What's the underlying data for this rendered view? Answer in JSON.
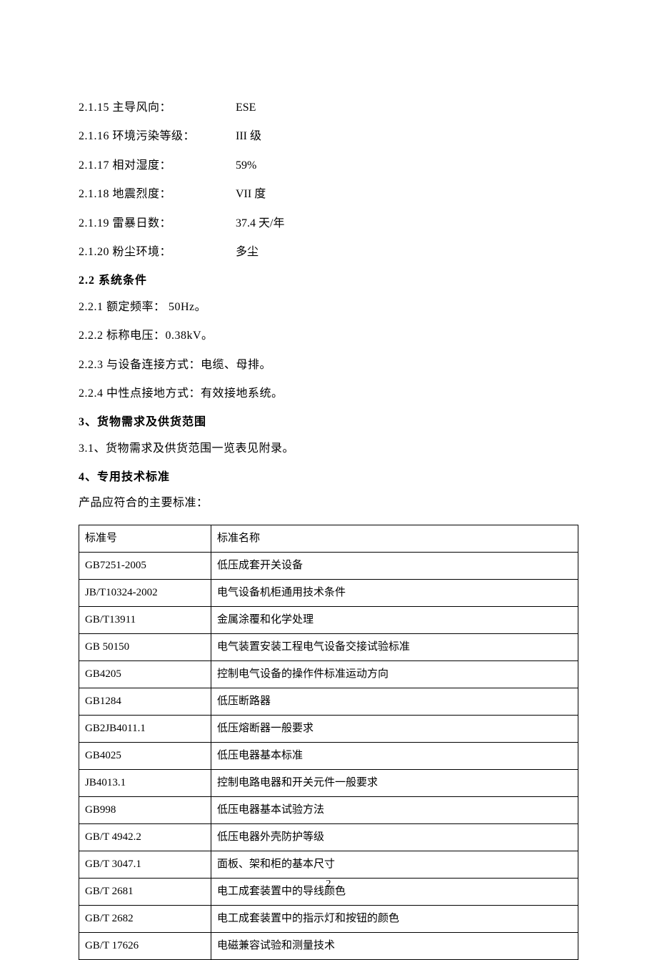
{
  "params": [
    {
      "label": "2.1.15 主导风向：",
      "value": "ESE"
    },
    {
      "label": "2.1.16 环境污染等级：",
      "value": "III 级"
    },
    {
      "label": "2.1.17 相对湿度：",
      "value": "59%"
    },
    {
      "label": "2.1.18 地震烈度：",
      "value": "VII 度"
    },
    {
      "label": "2.1.19 雷暴日数：",
      "value": "37.4 天/年"
    },
    {
      "label": "2.1.20 粉尘环境：",
      "value": "多尘"
    }
  ],
  "section22": {
    "heading": "2.2  系统条件",
    "lines": [
      "2.2.1  额定频率： 50Hz。",
      "2.2.2  标称电压：0.38kV。",
      "2.2.3  与设备连接方式：电缆、母排。",
      "2.2.4  中性点接地方式：有效接地系统。"
    ]
  },
  "section3": {
    "heading": "3、货物需求及供货范围",
    "line": "3.1、货物需求及供货范围一览表见附录。"
  },
  "section4": {
    "heading": "4、专用技术标准",
    "intro": "产品应符合的主要标准："
  },
  "table": {
    "header": {
      "code": "标准号",
      "name": "标准名称"
    },
    "rows": [
      {
        "code": "GB7251-2005",
        "name": "低压成套开关设备"
      },
      {
        "code": "JB/T10324-2002",
        "name": "电气设备机柜通用技术条件"
      },
      {
        "code": "GB/T13911",
        "name": "金属涂覆和化学处理"
      },
      {
        "code": "GB 50150",
        "name": "电气装置安装工程电气设备交接试验标准"
      },
      {
        "code": "GB4205",
        "name": "控制电气设备的操作件标准运动方向"
      },
      {
        "code": "GB1284",
        "name": "低压断路器"
      },
      {
        "code": "GB2JB4011.1",
        "name": "低压熔断器一般要求"
      },
      {
        "code": "GB4025",
        "name": "低压电器基本标准"
      },
      {
        "code": "JB4013.1",
        "name": "控制电路电器和开关元件一般要求"
      },
      {
        "code": "GB998",
        "name": "低压电器基本试验方法"
      },
      {
        "code": "GB/T 4942.2",
        "name": "低压电器外壳防护等级"
      },
      {
        "code": "GB/T 3047.1",
        "name": "面板、架和柜的基本尺寸"
      },
      {
        "code": "GB/T 2681",
        "name": "电工成套装置中的导线颜色"
      },
      {
        "code": "GB/T 2682",
        "name": "电工成套装置中的指示灯和按钮的颜色"
      },
      {
        "code": "GB/T 17626",
        "name": "电磁兼容试验和测量技术"
      }
    ]
  },
  "pageNumber": "2"
}
